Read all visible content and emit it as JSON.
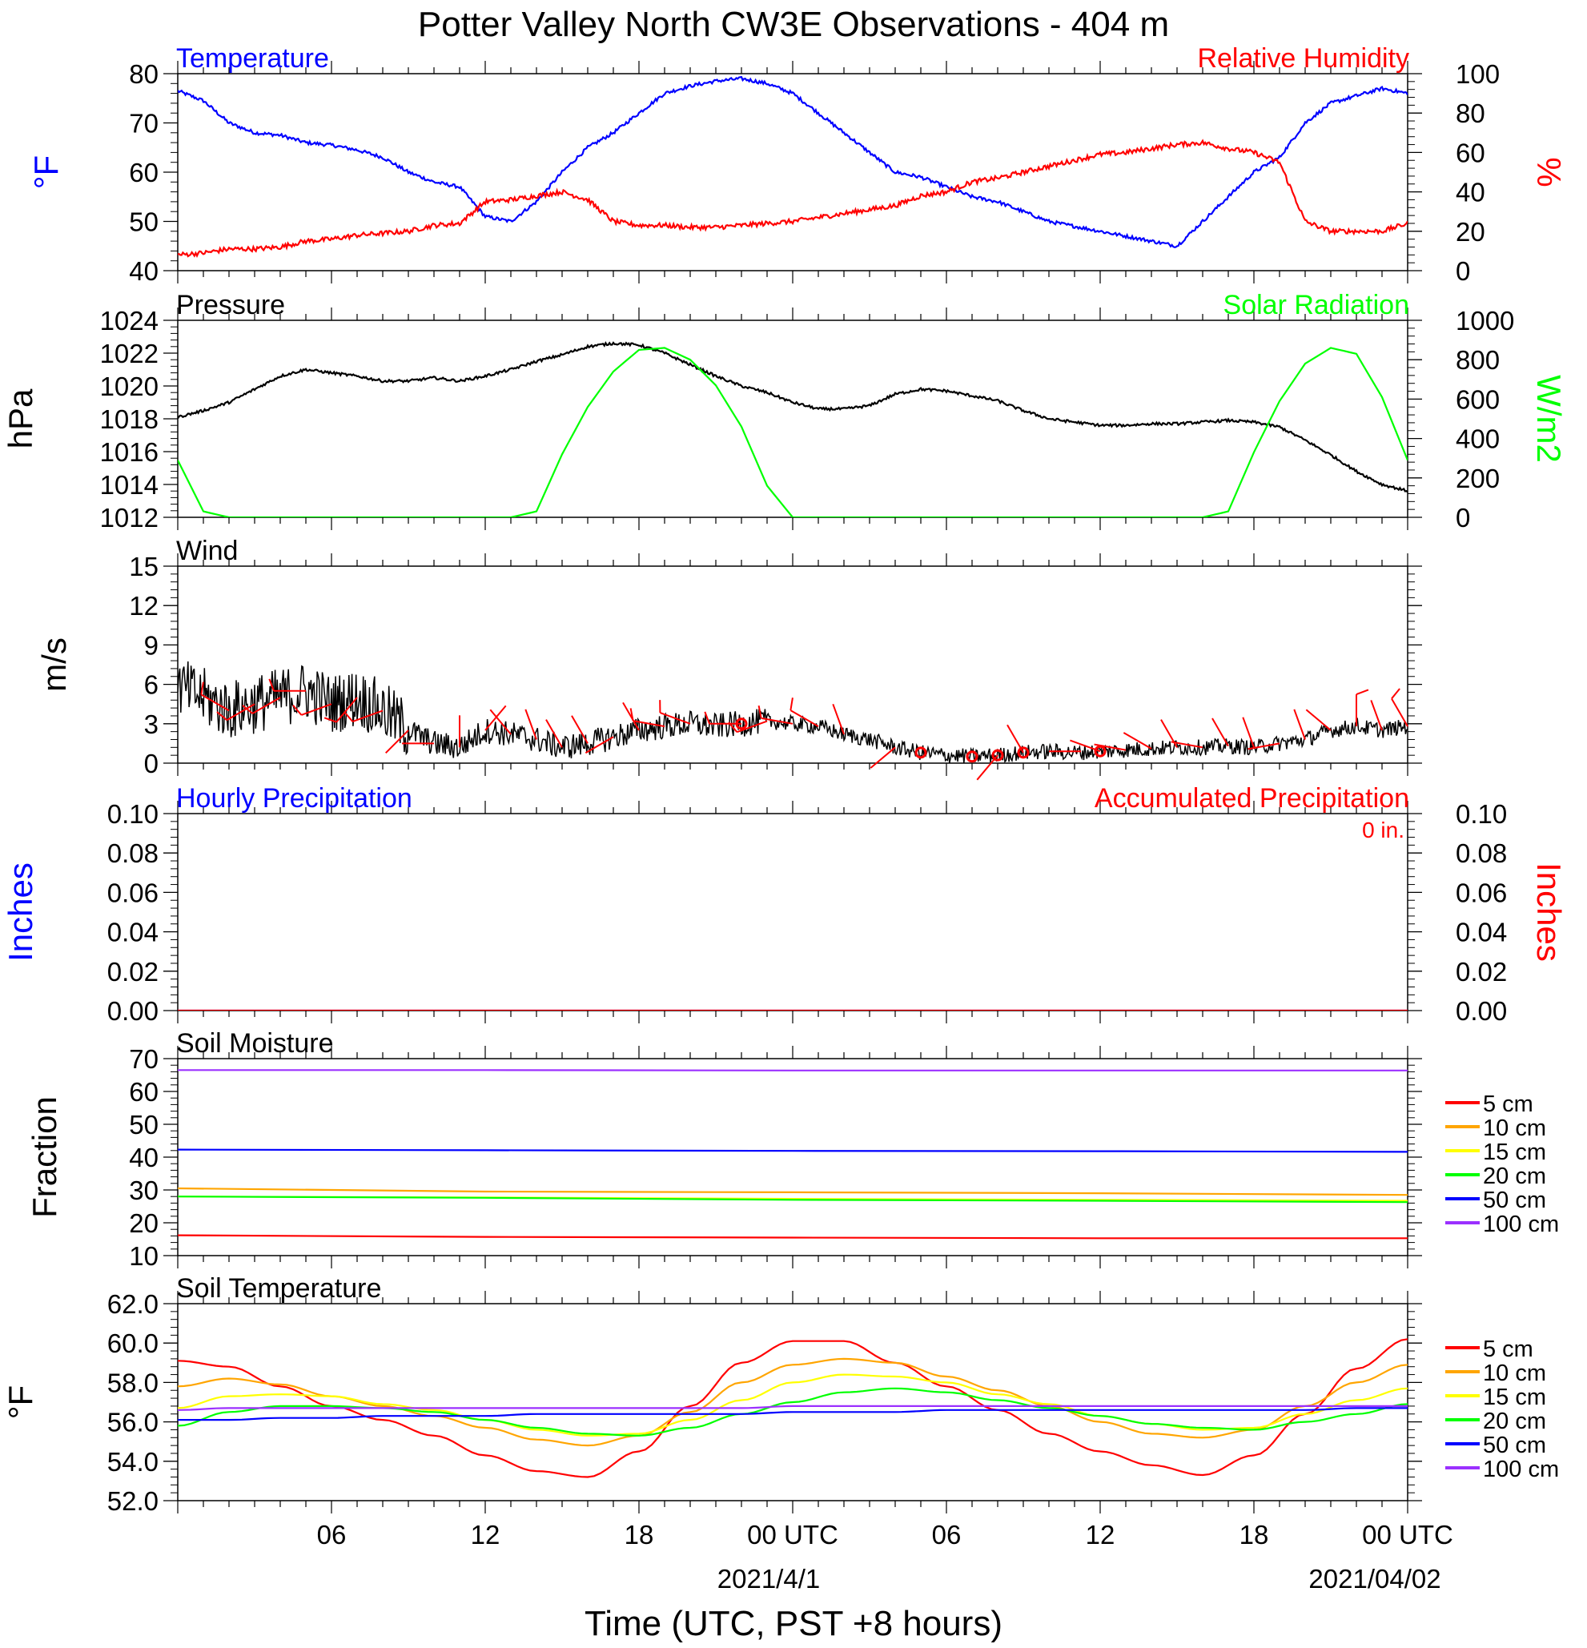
{
  "title": "Potter Valley North CW3E Observations - 404 m",
  "xaxis": {
    "label": "Time (UTC, PST +8 hours)",
    "ticks": [
      "06",
      "12",
      "18",
      "00 UTC",
      "06",
      "12",
      "18",
      "00 UTC"
    ],
    "dates": [
      "2021/4/1",
      "2021/04/02"
    ],
    "range_hours": [
      1,
      49
    ]
  },
  "chart_data": [
    {
      "type": "line",
      "name": "temperature-humidity",
      "title_left": "Temperature",
      "title_right": "Relative Humidity",
      "ylabel_left": "°F",
      "ylabel_right": "%",
      "ylim_left": [
        40,
        80
      ],
      "ylim_right": [
        0,
        100
      ],
      "yticks_left": [
        "40",
        "50",
        "60",
        "70",
        "80"
      ],
      "yticks_right": [
        "0",
        "20",
        "40",
        "60",
        "80",
        "100"
      ],
      "colors": {
        "temperature": "#0000ff",
        "humidity": "#ff0000"
      },
      "x": [
        1,
        2,
        3,
        4,
        5,
        6,
        7,
        8,
        9,
        10,
        11,
        12,
        13,
        14,
        15,
        16,
        17,
        18,
        19,
        20,
        21,
        22,
        23,
        24,
        25,
        26,
        27,
        28,
        29,
        30,
        31,
        32,
        33,
        34,
        35,
        36,
        37,
        38,
        39,
        40,
        41,
        42,
        43,
        44,
        45,
        46,
        47,
        48,
        49
      ],
      "series": [
        {
          "name": "Temperature",
          "axis": "left",
          "values": [
            76.5,
            74.5,
            70,
            68,
            67.5,
            66,
            65.5,
            64.5,
            63,
            60,
            58,
            57,
            51,
            50,
            54,
            60,
            65,
            68,
            72,
            76,
            77.5,
            78.5,
            79,
            78,
            76,
            72,
            68,
            64,
            60,
            59,
            57,
            55,
            54,
            52,
            50,
            49,
            48,
            47,
            46,
            45,
            50,
            55,
            60,
            63,
            70,
            74,
            75.5,
            77,
            76
          ]
        },
        {
          "name": "Relative Humidity",
          "axis": "right",
          "values": [
            8,
            9,
            11,
            11,
            12,
            15,
            16,
            18,
            19,
            20,
            23,
            24,
            35,
            36,
            38,
            40,
            36,
            25,
            23,
            23,
            22,
            22,
            23,
            24,
            25,
            27,
            29,
            31,
            33,
            38,
            40,
            45,
            47,
            50,
            53,
            56,
            59,
            60,
            62,
            64,
            65,
            62,
            60,
            55,
            25,
            20,
            20,
            20,
            24
          ]
        }
      ]
    },
    {
      "type": "line",
      "name": "pressure-solar",
      "title_left": "Pressure",
      "title_right": "Solar Radiation",
      "ylabel_left": "hPa",
      "ylabel_right": "W/m2",
      "ylim_left": [
        1012,
        1024
      ],
      "ylim_right": [
        0,
        1000
      ],
      "yticks_left": [
        "1012",
        "1014",
        "1016",
        "1018",
        "1020",
        "1022",
        "1024"
      ],
      "yticks_right": [
        "0",
        "200",
        "400",
        "600",
        "800",
        "1000"
      ],
      "colors": {
        "pressure": "#000000",
        "solar": "#00ff00"
      },
      "x": [
        1,
        2,
        3,
        4,
        5,
        6,
        7,
        8,
        9,
        10,
        11,
        12,
        13,
        14,
        15,
        16,
        17,
        18,
        19,
        20,
        21,
        22,
        23,
        24,
        25,
        26,
        27,
        28,
        29,
        30,
        31,
        32,
        33,
        34,
        35,
        36,
        37,
        38,
        39,
        40,
        41,
        42,
        43,
        44,
        45,
        46,
        47,
        48,
        49
      ],
      "series": [
        {
          "name": "Pressure",
          "axis": "left",
          "values": [
            1018.1,
            1018.5,
            1019,
            1019.8,
            1020.6,
            1021,
            1020.8,
            1020.6,
            1020.3,
            1020.3,
            1020.5,
            1020.3,
            1020.6,
            1021,
            1021.5,
            1021.9,
            1022.4,
            1022.6,
            1022.5,
            1022,
            1021.3,
            1020.6,
            1020,
            1019.6,
            1019,
            1018.6,
            1018.6,
            1018.8,
            1019.5,
            1019.8,
            1019.7,
            1019.4,
            1019.1,
            1018.5,
            1018,
            1017.8,
            1017.6,
            1017.6,
            1017.7,
            1017.7,
            1017.8,
            1017.9,
            1017.8,
            1017.5,
            1016.7,
            1015.8,
            1014.8,
            1014,
            1013.6
          ]
        },
        {
          "name": "Solar Radiation",
          "axis": "right",
          "values": [
            290,
            30,
            0,
            0,
            0,
            0,
            0,
            0,
            0,
            0,
            0,
            0,
            0,
            0,
            30,
            320,
            560,
            740,
            850,
            860,
            800,
            670,
            460,
            160,
            0,
            0,
            0,
            0,
            0,
            0,
            0,
            0,
            0,
            0,
            0,
            0,
            0,
            0,
            0,
            0,
            0,
            30,
            330,
            590,
            780,
            860,
            830,
            610,
            290
          ]
        }
      ]
    },
    {
      "type": "line",
      "name": "wind",
      "title_left": "Wind",
      "ylabel_left": "m/s",
      "ylim_left": [
        0,
        15
      ],
      "yticks_left": [
        "0",
        "3",
        "6",
        "9",
        "12",
        "15"
      ],
      "colors": {
        "speed": "#000000",
        "barbs": "#ff0000"
      },
      "x": [
        1,
        2,
        3,
        4,
        5,
        6,
        7,
        8,
        9,
        10,
        11,
        12,
        13,
        14,
        15,
        16,
        17,
        18,
        19,
        20,
        21,
        22,
        23,
        24,
        25,
        26,
        27,
        28,
        29,
        30,
        31,
        32,
        33,
        34,
        35,
        36,
        37,
        38,
        39,
        40,
        41,
        42,
        43,
        44,
        45,
        46,
        47,
        48,
        49
      ],
      "series": [
        {
          "name": "Wind Speed",
          "axis": "left",
          "values": [
            5.8,
            5,
            4,
            4.5,
            5,
            5.5,
            4.5,
            5,
            4,
            2.5,
            1.5,
            1.2,
            2.5,
            2.2,
            1.8,
            1.2,
            1.5,
            2,
            2.5,
            2.8,
            3,
            2.8,
            3,
            3.2,
            3,
            2.8,
            2.2,
            1.8,
            1.2,
            0.8,
            0.6,
            0.5,
            0.6,
            0.8,
            0.9,
            0.8,
            0.9,
            1,
            1.1,
            1.2,
            1.2,
            1.3,
            1.2,
            1.5,
            1.8,
            2.5,
            2.8,
            2.5,
            2.8
          ]
        },
        {
          "name": "Wind Barbs (direction deg, speed m/s)",
          "axis": "left",
          "x": [
            3,
            4,
            5,
            6,
            7,
            8,
            9,
            10,
            11,
            12,
            13,
            14,
            15,
            16,
            17,
            18,
            19,
            20,
            21,
            22,
            23,
            24,
            25,
            26,
            27,
            28,
            29,
            30,
            31,
            32,
            33,
            34,
            35,
            36,
            37,
            38,
            39,
            40,
            41,
            42,
            43,
            44,
            45,
            46,
            47,
            48,
            49
          ],
          "values": [
            300,
            240,
            240,
            270,
            250,
            220,
            250,
            225,
            270,
            0,
            40,
            320,
            340,
            330,
            330,
            240,
            330,
            280,
            290,
            null,
            270,
            250,
            280,
            300,
            340,
            null,
            230,
            null,
            null,
            null,
            220,
            330,
            90,
            null,
            290,
            280,
            300,
            330,
            280,
            330,
            340,
            260,
            340,
            310,
            0,
            340,
            330
          ]
        }
      ],
      "calm_hours": [
        23,
        30,
        32,
        33,
        34,
        37
      ]
    },
    {
      "type": "line",
      "name": "precipitation",
      "title_left": "Hourly Precipitation",
      "title_right": "Accumulated Precipitation",
      "total_label": "0 in.",
      "ylabel_left": "Inches",
      "ylabel_right": "Inches",
      "ylim_left": [
        0,
        0.1
      ],
      "ylim_right": [
        0,
        0.1
      ],
      "yticks_left": [
        "0.00",
        "0.02",
        "0.04",
        "0.06",
        "0.08",
        "0.10"
      ],
      "yticks_right": [
        "0.00",
        "0.02",
        "0.04",
        "0.06",
        "0.08",
        "0.10"
      ],
      "colors": {
        "hourly": "#0000ff",
        "accum": "#ff0000"
      },
      "x": [
        1,
        49
      ],
      "series": [
        {
          "name": "Hourly Precipitation",
          "axis": "left",
          "values": [
            0,
            0
          ]
        },
        {
          "name": "Accumulated Precipitation",
          "axis": "right",
          "values": [
            0,
            0
          ]
        }
      ]
    },
    {
      "type": "line",
      "name": "soil-moisture",
      "title_left": "Soil Moisture",
      "ylabel_left": "Fraction",
      "ylim_left": [
        10,
        70
      ],
      "yticks_left": [
        "10",
        "20",
        "30",
        "40",
        "50",
        "60",
        "70"
      ],
      "legend": [
        "5 cm",
        "10 cm",
        "15 cm",
        "20 cm",
        "50 cm",
        "100 cm"
      ],
      "legend_colors": [
        "#ff0000",
        "#ffa500",
        "#ffff00",
        "#00ff00",
        "#0000ff",
        "#9b30ff"
      ],
      "x": [
        1,
        13,
        25,
        37,
        49
      ],
      "series": [
        {
          "name": "5 cm",
          "axis": "left",
          "values": [
            16.2,
            15.7,
            15.5,
            15.3,
            15.3
          ]
        },
        {
          "name": "10 cm",
          "axis": "left",
          "values": [
            30.5,
            29.5,
            29.3,
            29,
            28.5
          ]
        },
        {
          "name": "15 cm",
          "axis": "left",
          "values": [
            28,
            27.7,
            27.3,
            27,
            26.7
          ]
        },
        {
          "name": "20 cm",
          "axis": "left",
          "values": [
            28,
            27.6,
            27,
            26.7,
            26.3
          ]
        },
        {
          "name": "50 cm",
          "axis": "left",
          "values": [
            42.3,
            42.1,
            41.9,
            41.8,
            41.6
          ]
        },
        {
          "name": "100 cm",
          "axis": "left",
          "values": [
            66.5,
            66.5,
            66.4,
            66.4,
            66.4
          ]
        }
      ]
    },
    {
      "type": "line",
      "name": "soil-temperature",
      "title_left": "Soil Temperature",
      "ylabel_left": "°F",
      "ylim_left": [
        52,
        62
      ],
      "yticks_left": [
        "52.0",
        "54.0",
        "56.0",
        "58.0",
        "60.0",
        "62.0"
      ],
      "legend": [
        "5 cm",
        "10 cm",
        "15 cm",
        "20 cm",
        "50 cm",
        "100 cm"
      ],
      "legend_colors": [
        "#ff0000",
        "#ffa500",
        "#ffff00",
        "#00ff00",
        "#0000ff",
        "#9b30ff"
      ],
      "x": [
        1,
        3,
        5,
        7,
        9,
        11,
        13,
        15,
        17,
        19,
        21,
        23,
        25,
        27,
        29,
        31,
        33,
        35,
        37,
        39,
        41,
        43,
        45,
        47,
        49
      ],
      "series": [
        {
          "name": "5 cm",
          "axis": "left",
          "values": [
            59.1,
            58.8,
            57.8,
            56.8,
            56.1,
            55.3,
            54.3,
            53.5,
            53.2,
            54.5,
            56.8,
            59,
            60.1,
            60.1,
            59,
            57.8,
            56.6,
            55.4,
            54.5,
            53.8,
            53.3,
            54.3,
            56.4,
            58.7,
            60.2
          ]
        },
        {
          "name": "10 cm",
          "axis": "left",
          "values": [
            57.8,
            58.2,
            57.9,
            57.3,
            56.8,
            56.3,
            55.7,
            55.1,
            54.8,
            55.3,
            56.5,
            58,
            58.9,
            59.2,
            59,
            58.3,
            57.6,
            56.8,
            56,
            55.4,
            55.2,
            55.6,
            56.8,
            58,
            58.9
          ]
        },
        {
          "name": "15 cm",
          "axis": "left",
          "values": [
            56.7,
            57.3,
            57.4,
            57.3,
            56.9,
            56.6,
            56.1,
            55.6,
            55.3,
            55.4,
            56.1,
            57.1,
            58,
            58.4,
            58.3,
            58,
            57.4,
            56.9,
            56.3,
            55.9,
            55.6,
            55.7,
            56.4,
            57.1,
            57.7
          ]
        },
        {
          "name": "20 cm",
          "axis": "left",
          "values": [
            55.8,
            56.5,
            56.8,
            56.8,
            56.7,
            56.5,
            56.1,
            55.7,
            55.4,
            55.3,
            55.7,
            56.4,
            57,
            57.5,
            57.7,
            57.5,
            57.1,
            56.7,
            56.3,
            55.9,
            55.7,
            55.6,
            56,
            56.4,
            56.9
          ]
        },
        {
          "name": "50 cm",
          "axis": "left",
          "values": [
            56.1,
            56.1,
            56.2,
            56.2,
            56.3,
            56.3,
            56.3,
            56.4,
            56.4,
            56.4,
            56.4,
            56.4,
            56.5,
            56.5,
            56.5,
            56.6,
            56.6,
            56.6,
            56.6,
            56.6,
            56.6,
            56.6,
            56.6,
            56.7,
            56.7
          ]
        },
        {
          "name": "100 cm",
          "axis": "left",
          "values": [
            56.6,
            56.7,
            56.7,
            56.7,
            56.7,
            56.7,
            56.7,
            56.7,
            56.7,
            56.7,
            56.7,
            56.7,
            56.8,
            56.8,
            56.8,
            56.8,
            56.8,
            56.8,
            56.8,
            56.8,
            56.8,
            56.8,
            56.8,
            56.8,
            56.8
          ]
        }
      ]
    }
  ]
}
